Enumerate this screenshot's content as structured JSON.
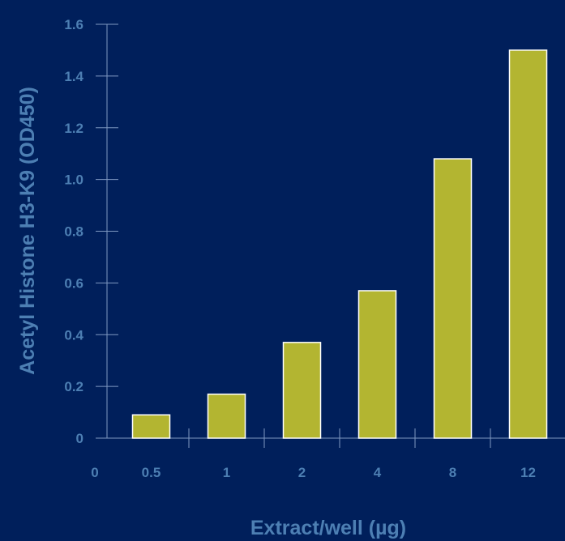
{
  "chart_data": {
    "type": "bar",
    "categories": [
      "0.5",
      "1",
      "2",
      "4",
      "8",
      "12"
    ],
    "values": [
      0.09,
      0.17,
      0.37,
      0.57,
      1.08,
      1.5
    ],
    "x_zero_label": "0",
    "xlabel": "Extract/well (µg)",
    "ylabel": "Acetyl Histone H3-K9 (OD450)",
    "ylim": [
      0,
      1.6
    ],
    "yticks": [
      "0",
      "0.2",
      "0.4",
      "0.6",
      "0.8",
      "1.0",
      "1.2",
      "1.4",
      "1.6"
    ],
    "grid": false,
    "colors": {
      "background": "#001f5b",
      "bar_fill": "#b3b531",
      "bar_outline": "#ffffff",
      "text": "#4d7fb3",
      "axis": "#7f99c2"
    }
  }
}
